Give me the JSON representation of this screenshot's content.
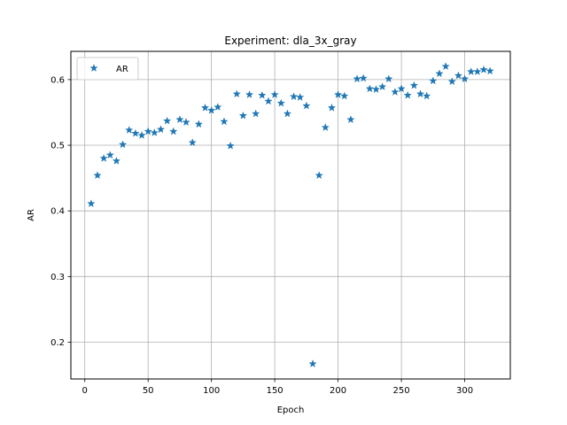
{
  "chart_data": {
    "type": "scatter",
    "title": "Experiment: dla_3x_gray",
    "xlabel": "Epoch",
    "ylabel": "AR",
    "xlim": [
      -11,
      336
    ],
    "ylim": [
      0.144,
      0.643
    ],
    "xticks": [
      0,
      50,
      100,
      150,
      200,
      250,
      300
    ],
    "yticks": [
      0.2,
      0.3,
      0.4,
      0.5,
      0.6
    ],
    "ytick_labels": [
      "0.2",
      "0.3",
      "0.4",
      "0.5",
      "0.6"
    ],
    "grid": true,
    "legend_position": "upper-left",
    "marker": "star",
    "color": "#1f77b4",
    "series": [
      {
        "name": "AR",
        "x": [
          5,
          10,
          15,
          20,
          25,
          30,
          35,
          40,
          45,
          50,
          55,
          60,
          65,
          70,
          75,
          80,
          85,
          90,
          95,
          100,
          105,
          110,
          115,
          120,
          125,
          130,
          135,
          140,
          145,
          150,
          155,
          160,
          165,
          170,
          175,
          180,
          185,
          190,
          195,
          200,
          205,
          210,
          215,
          220,
          225,
          230,
          235,
          240,
          245,
          250,
          255,
          260,
          265,
          270,
          275,
          280,
          285,
          290,
          295,
          300,
          305,
          310,
          315,
          320
        ],
        "y": [
          0.411,
          0.454,
          0.48,
          0.485,
          0.476,
          0.501,
          0.523,
          0.518,
          0.515,
          0.521,
          0.519,
          0.524,
          0.537,
          0.521,
          0.539,
          0.535,
          0.504,
          0.532,
          0.557,
          0.553,
          0.558,
          0.536,
          0.499,
          0.578,
          0.545,
          0.577,
          0.548,
          0.576,
          0.567,
          0.577,
          0.564,
          0.548,
          0.574,
          0.573,
          0.56,
          0.167,
          0.454,
          0.527,
          0.557,
          0.577,
          0.575,
          0.539,
          0.601,
          0.602,
          0.586,
          0.585,
          0.589,
          0.601,
          0.581,
          0.586,
          0.576,
          0.591,
          0.578,
          0.575,
          0.598,
          0.609,
          0.62,
          0.597,
          0.606,
          0.601,
          0.612,
          0.612,
          0.615,
          0.613
        ]
      }
    ]
  }
}
